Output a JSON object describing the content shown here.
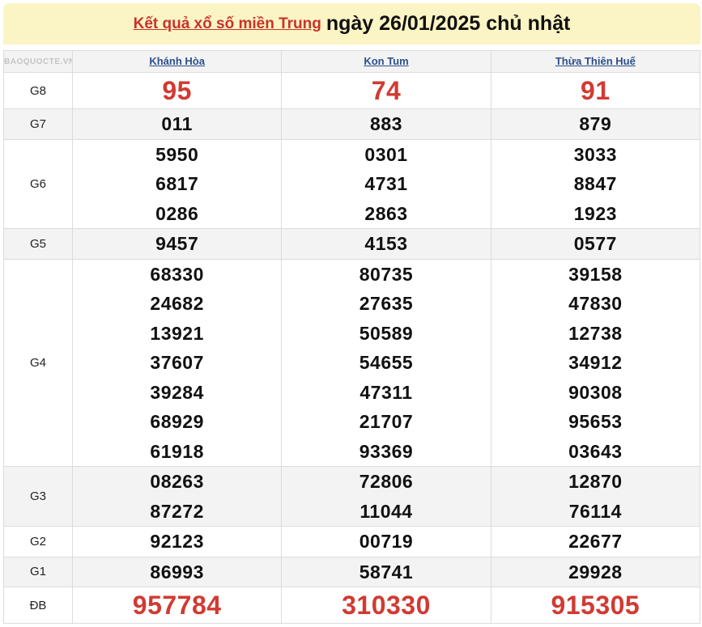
{
  "header": {
    "link_text": "Kết quả xổ số miền Trung",
    "date_text": "ngày 26/01/2025 chủ nhật"
  },
  "provinces": [
    "Khánh Hòa",
    "Kon Tum",
    "Thừa Thiên Huế"
  ],
  "prizes": [
    {
      "label": "G8",
      "big": true,
      "results": [
        [
          "95"
        ],
        [
          "74"
        ],
        [
          "91"
        ]
      ]
    },
    {
      "label": "G7",
      "results": [
        [
          "011"
        ],
        [
          "883"
        ],
        [
          "879"
        ]
      ]
    },
    {
      "label": "G6",
      "results": [
        [
          "5950",
          "6817",
          "0286"
        ],
        [
          "0301",
          "4731",
          "2863"
        ],
        [
          "3033",
          "8847",
          "1923"
        ]
      ]
    },
    {
      "label": "G5",
      "results": [
        [
          "9457"
        ],
        [
          "4153"
        ],
        [
          "0577"
        ]
      ]
    },
    {
      "label": "G4",
      "results": [
        [
          "68330",
          "24682",
          "13921",
          "37607",
          "39284",
          "68929",
          "61918"
        ],
        [
          "80735",
          "27635",
          "50589",
          "54655",
          "47311",
          "21707",
          "93369"
        ],
        [
          "39158",
          "47830",
          "12738",
          "34912",
          "90308",
          "95653",
          "03643"
        ]
      ]
    },
    {
      "label": "G3",
      "results": [
        [
          "08263",
          "87272"
        ],
        [
          "72806",
          "11044"
        ],
        [
          "12870",
          "76114"
        ]
      ]
    },
    {
      "label": "G2",
      "results": [
        [
          "92123"
        ],
        [
          "00719"
        ],
        [
          "22677"
        ]
      ]
    },
    {
      "label": "G1",
      "results": [
        [
          "86993"
        ],
        [
          "58741"
        ],
        [
          "29928"
        ]
      ]
    },
    {
      "label": "ĐB",
      "big": true,
      "results": [
        [
          "957784"
        ],
        [
          "310330"
        ],
        [
          "915305"
        ]
      ]
    }
  ],
  "watermark": "BAOQUOCTE.VN",
  "colors": {
    "accent_red": "#d13a32",
    "link_blue": "#2b4f8c",
    "title_bg": "#fbf4c4"
  }
}
